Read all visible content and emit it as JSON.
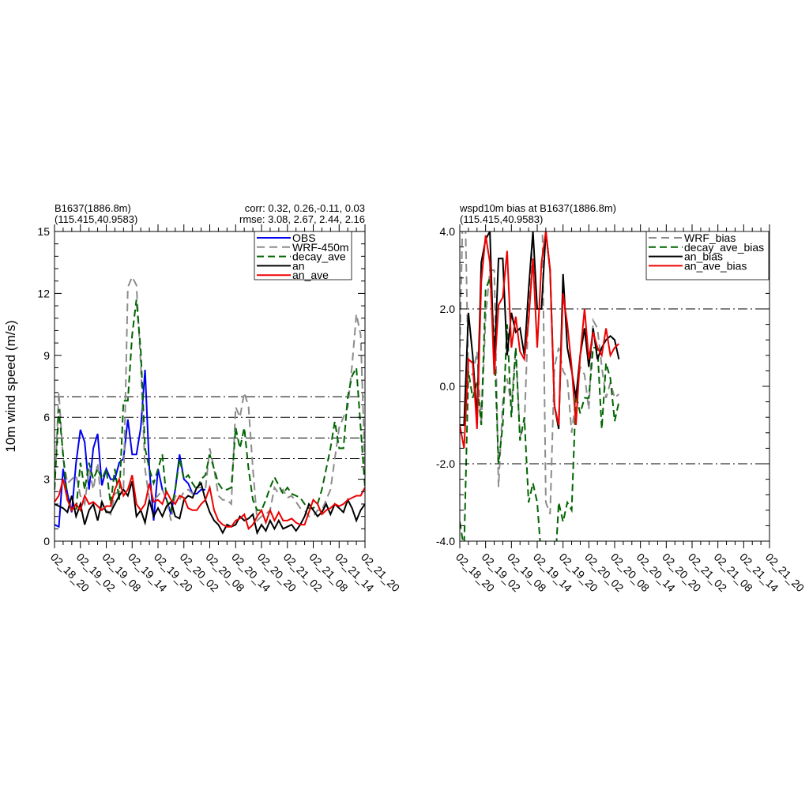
{
  "colors": {
    "OBS": "#0000ee",
    "WRF": "#8c8c8c",
    "decay": "#006400",
    "an": "#000000",
    "an_ave": "#ee0000",
    "ref": "#000000"
  },
  "chart_data": [
    {
      "type": "line",
      "title_left_1": "B1637(1886.8m)",
      "title_left_2": "(115.415,40.9583)",
      "title_right_1": "corr:  0.32, 0.26,-0.11, 0.03",
      "title_right_2": "rmse: 3.08, 2.67, 2.44, 2.16",
      "ylabel": "10m wind speed (m/s)",
      "ylim": [
        0,
        15
      ],
      "yticks": [
        0,
        3,
        6,
        9,
        12,
        15
      ],
      "ytick_labels": [
        "0",
        "3",
        "6",
        "9",
        "12",
        "15"
      ],
      "xlim": [
        0,
        72
      ],
      "xticks": [
        0,
        6,
        12,
        18,
        24,
        30,
        36,
        42,
        48,
        54,
        60,
        66,
        72
      ],
      "xtick_labels": [
        "02_18_20",
        "02_19_02",
        "02_19_08",
        "02_19_14",
        "02_19_20",
        "02_20_02",
        "02_20_08",
        "02_20_14",
        "02_20_20",
        "02_21_02",
        "02_21_08",
        "02_21_14",
        "02_21_20"
      ],
      "ref_lines": [
        4,
        5,
        6,
        7
      ],
      "legend_position": "top-right",
      "series": [
        {
          "name": "OBS",
          "color_key": "OBS",
          "dash": "",
          "x": [
            0,
            1,
            2,
            3,
            4,
            5,
            6,
            7,
            8,
            9,
            10,
            11,
            12,
            13,
            14,
            15,
            16,
            17,
            18,
            19,
            20,
            21,
            22,
            23,
            24,
            25,
            26,
            27,
            28,
            29,
            30,
            31,
            32,
            33,
            34,
            35
          ],
          "y": [
            0.8,
            0.7,
            3.5,
            2.3,
            1.4,
            3.8,
            5.4,
            4.8,
            2.5,
            4.5,
            5.2,
            2.7,
            3.5,
            3.0,
            3.0,
            3.8,
            4.0,
            5.9,
            4.2,
            4.2,
            5.5,
            8.3,
            3.5,
            1.0,
            3.5,
            2.5,
            2.0,
            1.3,
            2.5,
            4.2,
            3.0,
            2.8,
            2.3,
            2.3,
            2.5,
            2.5
          ]
        },
        {
          "name": "WRF-450m",
          "color_key": "WRF",
          "dash": "10,6",
          "x": [
            0,
            1,
            2,
            3,
            4,
            5,
            6,
            7,
            8,
            9,
            10,
            11,
            12,
            13,
            14,
            15,
            16,
            17,
            18,
            19,
            20,
            21,
            22,
            23,
            24,
            25,
            26,
            27,
            28,
            29,
            30,
            31,
            32,
            33,
            34,
            35,
            36,
            37,
            38,
            39,
            40,
            41,
            42,
            43,
            44,
            45,
            46,
            47,
            48,
            49,
            50,
            51,
            52,
            53,
            54,
            55,
            56,
            57,
            58,
            59,
            60,
            61,
            62,
            63,
            64,
            65,
            66,
            67,
            68,
            69,
            70,
            71,
            72
          ],
          "y": [
            2.5,
            7.2,
            4.0,
            2.8,
            3.0,
            3.2,
            2.2,
            1.8,
            3.5,
            2.5,
            3.8,
            1.5,
            1.5,
            1.3,
            2.3,
            2.4,
            2.5,
            12.3,
            12.8,
            12.4,
            8.5,
            3.5,
            2.0,
            2.0,
            2.2,
            2.5,
            2.0,
            1.0,
            2.2,
            2.0,
            2.4,
            2.5,
            2.3,
            2.6,
            2.6,
            2.5,
            4.5,
            3.5,
            2.2,
            2.0,
            2.0,
            1.8,
            6.5,
            6.0,
            7.2,
            6.5,
            3.5,
            1.0,
            1.2,
            1.3,
            1.5,
            2.6,
            2.3,
            2.5,
            2.1,
            2.2,
            1.9,
            1.6,
            1.5,
            1.2,
            1.2,
            1.5,
            1.5,
            2.0,
            2.5,
            4.0,
            5.5,
            6.0,
            6.5,
            8.5,
            11.0,
            10.0,
            3.5
          ]
        },
        {
          "name": "decay_ave",
          "color_key": "decay",
          "dash": "9,5",
          "x": [
            0,
            1,
            2,
            3,
            4,
            5,
            6,
            7,
            8,
            9,
            10,
            11,
            12,
            13,
            14,
            15,
            16,
            17,
            18,
            19,
            20,
            21,
            22,
            23,
            24,
            25,
            26,
            27,
            28,
            29,
            30,
            31,
            32,
            33,
            34,
            35,
            36,
            37,
            38,
            39,
            40,
            41,
            42,
            43,
            44,
            45,
            46,
            47,
            48,
            49,
            50,
            51,
            52,
            53,
            54,
            55,
            56,
            57,
            58,
            59,
            60,
            61,
            62,
            63,
            64,
            65,
            66,
            67,
            68,
            69,
            70,
            71,
            72
          ],
          "y": [
            2.5,
            6.4,
            4.2,
            2.0,
            1.5,
            1.5,
            3.8,
            2.5,
            3.8,
            3.0,
            3.5,
            3.0,
            3.5,
            1.8,
            3.5,
            2.0,
            6.8,
            6.8,
            10.0,
            11.7,
            9.2,
            4.5,
            3.5,
            2.8,
            3.5,
            4.2,
            2.0,
            1.5,
            2.5,
            4.0,
            3.0,
            3.2,
            2.8,
            2.5,
            3.0,
            3.2,
            4.2,
            3.5,
            2.8,
            2.5,
            2.5,
            2.6,
            5.5,
            4.5,
            5.5,
            3.5,
            2.0,
            1.5,
            1.5,
            2.0,
            2.6,
            3.1,
            2.7,
            2.3,
            2.6,
            2.3,
            2.2,
            2.1,
            1.8,
            1.6,
            1.6,
            1.8,
            2.5,
            3.5,
            4.5,
            5.8,
            4.5,
            4.5,
            7.0,
            8.0,
            8.4,
            5.5,
            2.6
          ]
        },
        {
          "name": "an",
          "color_key": "an",
          "dash": "",
          "x": [
            0,
            1,
            2,
            3,
            4,
            5,
            6,
            7,
            8,
            9,
            10,
            11,
            12,
            13,
            14,
            15,
            16,
            17,
            18,
            19,
            20,
            21,
            22,
            23,
            24,
            25,
            26,
            27,
            28,
            29,
            30,
            31,
            32,
            33,
            34,
            35,
            36,
            37,
            38,
            39,
            40,
            41,
            42,
            43,
            44,
            45,
            46,
            47,
            48,
            49,
            50,
            51,
            52,
            53,
            54,
            55,
            56,
            57,
            58,
            59,
            60,
            61,
            62,
            63,
            64,
            65,
            66,
            67,
            68,
            69,
            70,
            71,
            72
          ],
          "y": [
            1.8,
            1.7,
            1.6,
            1.4,
            2.2,
            1.2,
            1.8,
            0.8,
            1.5,
            1.8,
            1.0,
            1.9,
            1.4,
            1.4,
            1.8,
            2.2,
            2.5,
            2.2,
            2.9,
            1.2,
            1.5,
            0.9,
            2.0,
            1.2,
            1.6,
            1.2,
            1.7,
            1.9,
            1.2,
            1.1,
            2.0,
            2.2,
            2.1,
            2.6,
            2.8,
            2.0,
            1.4,
            1.0,
            0.8,
            0.4,
            0.8,
            0.7,
            0.8,
            1.2,
            1.0,
            1.1,
            1.3,
            0.4,
            0.8,
            0.5,
            1.0,
            0.6,
            1.0,
            0.6,
            0.7,
            0.8,
            0.5,
            0.8,
            1.2,
            1.8,
            1.5,
            1.2,
            1.4,
            1.8,
            1.3,
            1.8,
            1.6,
            1.4,
            2.0,
            1.6,
            1.0,
            1.5,
            1.8
          ]
        },
        {
          "name": "an_ave",
          "color_key": "an_ave",
          "dash": "",
          "x": [
            0,
            1,
            2,
            3,
            4,
            5,
            6,
            7,
            8,
            9,
            10,
            11,
            12,
            13,
            14,
            15,
            16,
            17,
            18,
            19,
            20,
            21,
            22,
            23,
            24,
            25,
            26,
            27,
            28,
            29,
            30,
            31,
            32,
            33,
            34,
            35,
            36,
            37,
            38,
            39,
            40,
            41,
            42,
            43,
            44,
            45,
            46,
            47,
            48,
            49,
            50,
            51,
            52,
            53,
            54,
            55,
            56,
            57,
            58,
            59,
            60,
            61,
            62,
            63,
            64,
            65,
            66,
            67,
            68,
            69,
            70,
            71,
            72
          ],
          "y": [
            1.9,
            2.2,
            3.0,
            2.0,
            1.5,
            1.8,
            1.5,
            2.2,
            1.8,
            1.9,
            1.7,
            1.5,
            1.7,
            1.7,
            2.5,
            3.0,
            2.2,
            2.5,
            3.2,
            1.8,
            1.5,
            1.8,
            2.8,
            1.9,
            2.0,
            1.8,
            2.4,
            2.0,
            1.8,
            2.2,
            2.1,
            1.6,
            1.5,
            1.5,
            1.8,
            2.0,
            2.6,
            1.5,
            1.0,
            0.8,
            0.7,
            0.7,
            1.0,
            1.1,
            1.3,
            0.6,
            0.8,
            1.2,
            1.5,
            0.9,
            1.5,
            1.0,
            1.4,
            1.0,
            1.0,
            1.1,
            0.9,
            0.8,
            0.8,
            1.4,
            2.0,
            1.8,
            1.3,
            1.5,
            1.6,
            1.8,
            1.7,
            1.8,
            2.0,
            2.1,
            2.2,
            2.2,
            2.6
          ]
        }
      ]
    },
    {
      "type": "line",
      "title_1": "wspd10m bias at B1637(1886.8m)",
      "title_2": "(115.415,40.9583)",
      "ylim": [
        -4,
        4
      ],
      "yticks": [
        -4,
        -2,
        0,
        2,
        4
      ],
      "ytick_labels": [
        "-4.0",
        "-2.0",
        "0.0",
        "2.0",
        "4.0"
      ],
      "xlim": [
        0,
        72
      ],
      "xticks": [
        0,
        6,
        12,
        18,
        24,
        30,
        36,
        42,
        48,
        54,
        60,
        66,
        72
      ],
      "xtick_labels": [
        "02_18_20",
        "02_19_02",
        "02_19_08",
        "02_19_14",
        "02_19_20",
        "02_20_02",
        "02_20_08",
        "02_20_14",
        "02_20_20",
        "02_21_02",
        "02_21_08",
        "02_21_14",
        "02_21_20"
      ],
      "ref_lines": [
        -2,
        2
      ],
      "legend_position": "top-right",
      "series": [
        {
          "name": "WRF_bias",
          "color_key": "WRF",
          "dash": "10,6",
          "x": [
            0,
            1,
            2,
            3,
            4,
            5,
            6,
            7,
            8,
            9,
            10,
            11,
            12,
            13,
            14,
            15,
            16,
            17,
            18,
            19,
            20,
            21,
            22,
            23,
            24,
            25,
            26,
            27,
            28,
            29,
            30,
            31,
            32,
            33,
            34,
            35,
            36,
            37
          ],
          "y": [
            1.0,
            6.0,
            0.3,
            0.3,
            0.9,
            -1.0,
            1.8,
            3.0,
            3.0,
            -2.6,
            -0.4,
            0.2,
            -0.5,
            1.0,
            -1.3,
            -1.0,
            2.0,
            4.0,
            7.0,
            6.0,
            -3.0,
            -3.3,
            0.5,
            1.0,
            0.4,
            0.2,
            -1.2,
            -0.3,
            0.5,
            0.3,
            -0.6,
            1.7,
            1.5,
            0.5,
            -0.3,
            0.1,
            -0.3,
            -0.2
          ]
        },
        {
          "name": "decay_ave_bias",
          "color_key": "decay",
          "dash": "9,5",
          "x": [
            0,
            1,
            2,
            3,
            4,
            5,
            6,
            7,
            8,
            9,
            10,
            11,
            12,
            13,
            14,
            15,
            16,
            17,
            18,
            19,
            20,
            21,
            22,
            23,
            24,
            25,
            26,
            27,
            28,
            29,
            30,
            31,
            32,
            33,
            34,
            35,
            36,
            37
          ],
          "y": [
            -3.5,
            -4.2,
            0.4,
            -0.3,
            0.1,
            -1.0,
            2.5,
            2.8,
            1.2,
            -2.0,
            -1.0,
            1.6,
            -0.8,
            1.0,
            -1.4,
            -0.8,
            -3.0,
            -2.5,
            -3.0,
            -4.5,
            -5.0,
            -4.0,
            -5.0,
            -3.0,
            -3.5,
            -3.0,
            -3.2,
            -0.2,
            -0.7,
            -0.3,
            -0.3,
            1.0,
            1.0,
            -1.1,
            0.6,
            0.2,
            -0.9,
            -0.4
          ]
        },
        {
          "name": "an_bias",
          "color_key": "an",
          "dash": "",
          "x": [
            0,
            1,
            2,
            3,
            4,
            5,
            6,
            7,
            8,
            9,
            10,
            11,
            12,
            13,
            14,
            15,
            16,
            17,
            18,
            19,
            20,
            21,
            22,
            23,
            24,
            25,
            26,
            27,
            28,
            29,
            30,
            31,
            32,
            33,
            34,
            35,
            36,
            37
          ],
          "y": [
            -1.0,
            -1.0,
            1.9,
            0.8,
            -0.8,
            3.2,
            3.8,
            4.0,
            0.5,
            3.3,
            3.3,
            0.8,
            1.9,
            1.4,
            1.5,
            0.8,
            2.5,
            4.0,
            2.0,
            2.0,
            4.0,
            3.0,
            -0.5,
            -1.1,
            2.9,
            1.0,
            0.4,
            -0.3,
            0.8,
            1.5,
            0.5,
            1.5,
            0.7,
            1.0,
            1.2,
            1.3,
            1.2,
            0.7
          ]
        },
        {
          "name": "an_ave_bias",
          "color_key": "an_ave",
          "dash": "",
          "x": [
            0,
            1,
            2,
            3,
            4,
            5,
            6,
            7,
            8,
            9,
            10,
            11,
            12,
            13,
            14,
            15,
            16,
            17,
            18,
            19,
            20,
            21,
            22,
            23,
            24,
            25,
            26,
            27,
            28,
            29,
            30,
            31,
            32,
            33,
            34,
            35,
            36,
            37
          ],
          "y": [
            -1.0,
            -1.6,
            0.7,
            0.6,
            -1.1,
            2.7,
            3.9,
            3.2,
            0.3,
            2.1,
            2.3,
            3.5,
            1.0,
            1.8,
            0.9,
            0.7,
            1.7,
            3.3,
            1.0,
            3.2,
            4.0,
            3.0,
            -0.5,
            -1.0,
            2.4,
            1.6,
            0.5,
            -1.0,
            0.8,
            2.0,
            0.7,
            1.4,
            1.0,
            0.8,
            1.5,
            0.8,
            1.0,
            1.1
          ]
        }
      ]
    }
  ]
}
